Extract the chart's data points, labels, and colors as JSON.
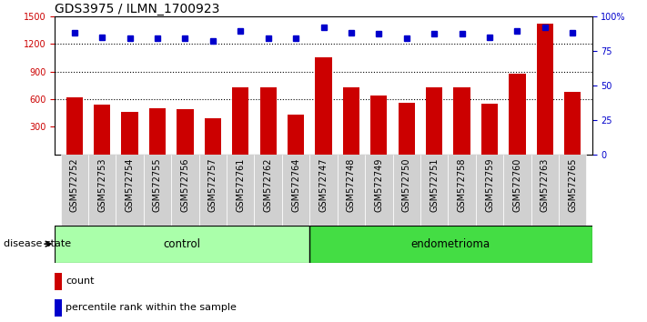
{
  "title": "GDS3975 / ILMN_1700923",
  "samples": [
    "GSM572752",
    "GSM572753",
    "GSM572754",
    "GSM572755",
    "GSM572756",
    "GSM572757",
    "GSM572761",
    "GSM572762",
    "GSM572764",
    "GSM572747",
    "GSM572748",
    "GSM572749",
    "GSM572750",
    "GSM572751",
    "GSM572758",
    "GSM572759",
    "GSM572760",
    "GSM572763",
    "GSM572765"
  ],
  "bar_values": [
    620,
    540,
    460,
    500,
    490,
    390,
    730,
    730,
    430,
    1050,
    730,
    640,
    560,
    730,
    730,
    550,
    880,
    1420,
    680
  ],
  "dot_values": [
    88,
    85,
    84,
    84,
    84,
    82,
    89,
    84,
    84,
    92,
    88,
    87,
    84,
    87,
    87,
    85,
    89,
    92,
    88
  ],
  "n_control": 9,
  "n_endo": 10,
  "control_label": "control",
  "endo_label": "endometrioma",
  "disease_state_label": "disease state",
  "bar_color": "#cc0000",
  "dot_color": "#0000cc",
  "ylim_left": [
    0,
    1500
  ],
  "ylim_right": [
    0,
    100
  ],
  "yticks_left": [
    300,
    600,
    900,
    1200,
    1500
  ],
  "yticks_right": [
    0,
    25,
    50,
    75,
    100
  ],
  "ytick_right_labels": [
    "0",
    "25",
    "50",
    "75",
    "100%"
  ],
  "grid_values": [
    600,
    900,
    1200
  ],
  "legend_count": "count",
  "legend_pct": "percentile rank within the sample",
  "bg_plot": "#ffffff",
  "bg_xticklabel": "#d0d0d0",
  "bg_control": "#aaffaa",
  "bg_endo": "#44dd44",
  "title_fontsize": 10,
  "tick_fontsize": 7,
  "axis_label_color_left": "#cc0000",
  "axis_label_color_right": "#0000cc"
}
